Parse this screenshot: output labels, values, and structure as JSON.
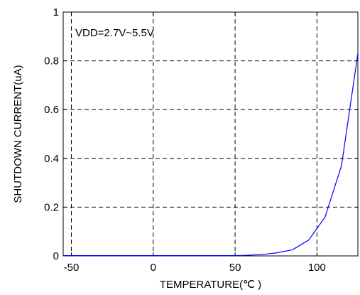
{
  "chart_data": {
    "type": "line",
    "title": "",
    "xlabel": "TEMPERATURE(℃ )",
    "ylabel": "SHUTDOWN CURRENT(uA)",
    "xlim": [
      -55,
      125
    ],
    "ylim": [
      0,
      1
    ],
    "grid": true,
    "xticks": [
      -50,
      0,
      50,
      100
    ],
    "yticks": [
      0,
      0.2,
      0.4,
      0.6,
      0.8,
      1
    ],
    "xtick_labels": [
      "-50",
      "0",
      "50",
      "100"
    ],
    "ytick_labels": [
      "0",
      "0.2",
      "0.4",
      "0.6",
      "0.8",
      "1"
    ],
    "annotation": "VDD=2.7V~5.5V",
    "series": [
      {
        "color": "#0000ff",
        "x": [
          -55,
          -45,
          -35,
          -25,
          -15,
          -5,
          5,
          15,
          25,
          35,
          45,
          55,
          65,
          75,
          85,
          95,
          105,
          115,
          125
        ],
        "y": [
          0.001,
          0.001,
          0.001,
          0.001,
          0.001,
          0.001,
          0.001,
          0.001,
          0.001,
          0.001,
          0.001,
          0.002,
          0.005,
          0.012,
          0.025,
          0.065,
          0.16,
          0.37,
          0.83
        ]
      }
    ]
  }
}
